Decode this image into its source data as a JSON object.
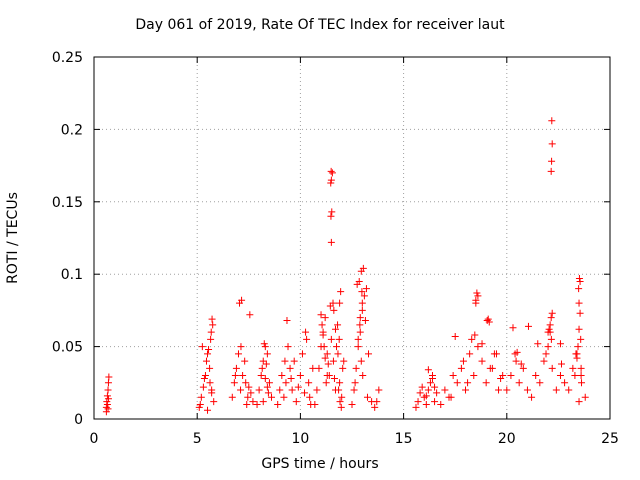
{
  "chart_data": {
    "type": "scatter",
    "title": "Day 061 of 2019, Rate Of TEC Index for receiver laut",
    "xlabel": "GPS time / hours",
    "ylabel": "ROTI / TECUs",
    "xlim": [
      0,
      25
    ],
    "ylim": [
      0,
      0.25
    ],
    "xticks": [
      0,
      5,
      10,
      15,
      20,
      25
    ],
    "xtick_labels": [
      "0",
      "5",
      "10",
      "15",
      "20",
      "25"
    ],
    "yticks": [
      0,
      0.05,
      0.1,
      0.15,
      0.2,
      0.25
    ],
    "ytick_labels": [
      "0",
      "0.05",
      "0.1",
      "0.15",
      "0.2",
      "0.25"
    ],
    "grid": true,
    "marker": "+",
    "color": "#ff0000",
    "series": [
      {
        "name": "ROTI",
        "x": [
          0.6,
          0.62,
          0.65,
          0.68,
          0.7,
          0.72,
          0.6,
          0.65,
          0.7,
          0.68,
          5.1,
          5.2,
          5.3,
          5.4,
          5.5,
          5.6,
          5.7,
          5.8,
          5.25,
          5.45,
          5.65,
          5.75,
          5.15,
          5.35,
          5.55,
          5.68,
          5.72,
          5.7,
          5.62,
          5.5,
          6.7,
          6.8,
          6.9,
          7.0,
          7.1,
          7.2,
          7.3,
          7.4,
          7.5,
          7.6,
          7.7,
          7.05,
          7.15,
          7.12,
          7.55,
          6.85,
          7.35,
          7.45,
          7.9,
          8.0,
          8.1,
          8.2,
          8.3,
          8.4,
          8.5,
          8.6,
          8.15,
          8.25,
          8.35,
          8.45,
          8.3,
          8.4,
          8.2,
          8.9,
          9.0,
          9.1,
          9.2,
          9.3,
          9.4,
          9.5,
          9.6,
          9.7,
          9.8,
          9.9,
          10.0,
          10.1,
          10.2,
          10.3,
          10.4,
          10.5,
          10.6,
          9.35,
          9.25,
          9.55,
          10.25,
          10.45,
          10.7,
          10.8,
          10.9,
          11.0,
          11.1,
          11.2,
          11.3,
          11.4,
          11.5,
          11.6,
          11.7,
          11.8,
          11.9,
          12.0,
          12.1,
          11.0,
          11.05,
          11.1,
          11.15,
          11.2,
          11.45,
          11.5,
          11.48,
          11.52,
          11.47,
          11.5,
          11.55,
          11.49,
          11.58,
          11.62,
          11.7,
          11.75,
          11.82,
          11.9,
          11.95,
          11.3,
          11.35,
          11.25,
          11.85,
          11.92,
          11.98,
          12.05,
          11.88,
          11.65,
          12.5,
          12.6,
          12.7,
          12.8,
          12.9,
          13.0,
          13.1,
          13.2,
          13.3,
          12.75,
          12.85,
          12.95,
          13.05,
          13.0,
          12.9,
          12.8,
          12.95,
          13.02,
          12.65,
          13.15,
          13.25,
          13.45,
          13.6,
          13.7,
          13.8,
          12.88,
          12.98,
          15.6,
          15.7,
          15.8,
          15.9,
          16.0,
          16.1,
          16.2,
          16.3,
          16.4,
          16.5,
          16.6,
          16.2,
          16.4,
          16.1,
          16.5,
          16.8,
          17.0,
          17.2,
          17.4,
          17.6,
          17.8,
          18.0,
          18.2,
          18.4,
          18.6,
          18.8,
          19.0,
          19.2,
          19.4,
          19.6,
          19.8,
          17.5,
          17.9,
          18.3,
          18.5,
          18.55,
          18.6,
          18.5,
          18.45,
          18.8,
          19.05,
          19.1,
          19.15,
          19.3,
          19.5,
          19.7,
          18.1,
          17.3,
          20.0,
          20.2,
          20.4,
          20.6,
          20.8,
          21.0,
          21.2,
          21.4,
          21.6,
          21.8,
          22.0,
          22.2,
          22.4,
          22.6,
          22.8,
          23.0,
          23.2,
          23.4,
          23.6,
          23.8,
          20.3,
          20.5,
          20.45,
          20.7,
          21.05,
          21.5,
          21.9,
          22.0,
          22.05,
          22.1,
          22.15,
          22.2,
          22.1,
          22.15,
          22.17,
          22.2,
          22.18,
          22.16,
          22.6,
          22.65,
          23.3,
          23.35,
          23.4,
          23.45,
          23.5,
          23.55,
          23.5,
          23.55,
          23.52,
          23.48,
          23.58,
          23.6,
          23.62,
          23.5
        ],
        "y": [
          0.008,
          0.012,
          0.016,
          0.02,
          0.025,
          0.029,
          0.005,
          0.01,
          0.014,
          0.007,
          0.008,
          0.015,
          0.022,
          0.03,
          0.045,
          0.035,
          0.02,
          0.012,
          0.05,
          0.04,
          0.055,
          0.065,
          0.01,
          0.028,
          0.048,
          0.06,
          0.069,
          0.018,
          0.025,
          0.006,
          0.015,
          0.025,
          0.035,
          0.045,
          0.02,
          0.03,
          0.04,
          0.01,
          0.022,
          0.018,
          0.012,
          0.08,
          0.082,
          0.05,
          0.072,
          0.03,
          0.025,
          0.015,
          0.01,
          0.02,
          0.03,
          0.04,
          0.05,
          0.045,
          0.025,
          0.015,
          0.035,
          0.052,
          0.038,
          0.018,
          0.028,
          0.022,
          0.012,
          0.01,
          0.02,
          0.03,
          0.015,
          0.025,
          0.05,
          0.035,
          0.02,
          0.04,
          0.012,
          0.022,
          0.03,
          0.045,
          0.018,
          0.055,
          0.025,
          0.01,
          0.035,
          0.068,
          0.04,
          0.028,
          0.06,
          0.015,
          0.01,
          0.02,
          0.035,
          0.05,
          0.06,
          0.07,
          0.045,
          0.03,
          0.055,
          0.04,
          0.02,
          0.065,
          0.025,
          0.015,
          0.04,
          0.072,
          0.065,
          0.058,
          0.05,
          0.042,
          0.078,
          0.122,
          0.14,
          0.143,
          0.163,
          0.165,
          0.17,
          0.171,
          0.08,
          0.075,
          0.062,
          0.05,
          0.045,
          0.08,
          0.088,
          0.03,
          0.038,
          0.025,
          0.02,
          0.012,
          0.008,
          0.035,
          0.055,
          0.028,
          0.01,
          0.02,
          0.035,
          0.05,
          0.06,
          0.075,
          0.085,
          0.09,
          0.045,
          0.093,
          0.095,
          0.102,
          0.104,
          0.08,
          0.07,
          0.055,
          0.04,
          0.03,
          0.025,
          0.068,
          0.015,
          0.012,
          0.008,
          0.012,
          0.02,
          0.065,
          0.088,
          0.008,
          0.012,
          0.018,
          0.022,
          0.015,
          0.01,
          0.02,
          0.025,
          0.03,
          0.012,
          0.018,
          0.034,
          0.028,
          0.016,
          0.022,
          0.01,
          0.02,
          0.015,
          0.03,
          0.025,
          0.035,
          0.02,
          0.045,
          0.03,
          0.05,
          0.04,
          0.025,
          0.035,
          0.045,
          0.02,
          0.03,
          0.057,
          0.04,
          0.055,
          0.082,
          0.087,
          0.085,
          0.08,
          0.058,
          0.052,
          0.068,
          0.069,
          0.067,
          0.035,
          0.045,
          0.028,
          0.025,
          0.015,
          0.02,
          0.03,
          0.045,
          0.025,
          0.035,
          0.02,
          0.015,
          0.03,
          0.025,
          0.04,
          0.05,
          0.035,
          0.02,
          0.03,
          0.025,
          0.02,
          0.035,
          0.045,
          0.03,
          0.015,
          0.063,
          0.046,
          0.04,
          0.038,
          0.064,
          0.052,
          0.045,
          0.06,
          0.062,
          0.065,
          0.07,
          0.073,
          0.06,
          0.171,
          0.178,
          0.19,
          0.206,
          0.055,
          0.052,
          0.038,
          0.03,
          0.045,
          0.042,
          0.05,
          0.062,
          0.073,
          0.08,
          0.095,
          0.097,
          0.09,
          0.055,
          0.035,
          0.025,
          0.012
        ]
      }
    ]
  }
}
